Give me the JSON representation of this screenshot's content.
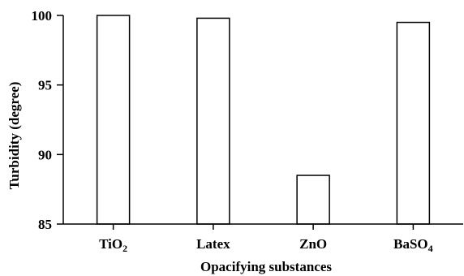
{
  "chart_data": {
    "type": "bar",
    "categories": [
      {
        "base": "TiO",
        "sub": "2"
      },
      {
        "base": "Latex",
        "sub": ""
      },
      {
        "base": "ZnO",
        "sub": ""
      },
      {
        "base": "BaSO",
        "sub": "4"
      }
    ],
    "values": [
      100,
      99.8,
      88.5,
      99.5
    ],
    "xlabel": "Opacifying substances",
    "ylabel": "Turbidity (degree)",
    "ylim": [
      85,
      100
    ],
    "yticks": [
      85,
      90,
      95,
      100
    ],
    "grid": false,
    "bar_fill": "#ffffff",
    "bar_stroke": "#000000"
  }
}
